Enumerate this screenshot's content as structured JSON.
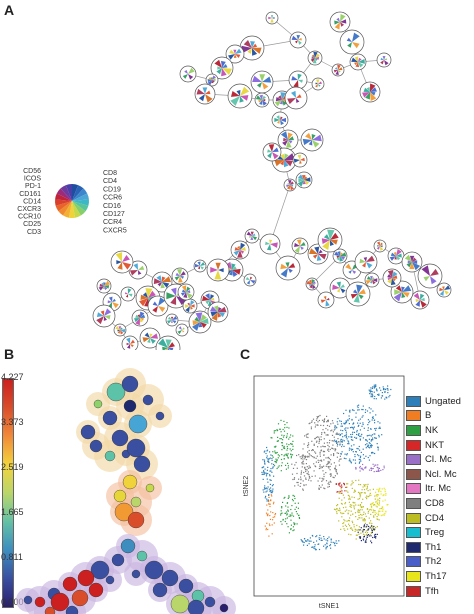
{
  "panels": {
    "a": {
      "letter": "A"
    },
    "b": {
      "letter": "B"
    },
    "c": {
      "letter": "C"
    }
  },
  "marker_legend": {
    "left": [
      "CD56",
      "ICOS",
      "PD-1",
      "CD161",
      "CD14",
      "CXCR3",
      "CCR10",
      "CD25",
      "CD3"
    ],
    "right": [
      "CD8",
      "CD4",
      "CD19",
      "CCR6",
      "CD16",
      "CD127",
      "CCR4",
      "CXCR5"
    ]
  },
  "colorbar": {
    "ticks": [
      "4.227",
      "3.373",
      "2.519",
      "1.665",
      "0.811",
      "0.000"
    ],
    "colors": [
      "#cc1f1f",
      "#d94d2b",
      "#f08a3a",
      "#f3d33c",
      "#b9d66a",
      "#65c1a5",
      "#3d8dbf",
      "#3a4fa0",
      "#2a1f6e"
    ]
  },
  "tsne": {
    "xlabel": "tSNE1",
    "ylabel": "tSNE2"
  },
  "legend": [
    {
      "label": "Ungated",
      "color": "#2c7fb8"
    },
    {
      "label": "B",
      "color": "#f07d22"
    },
    {
      "label": "NK",
      "color": "#2ea043"
    },
    {
      "label": "NKT",
      "color": "#d62728"
    },
    {
      "label": "Cl. Mc",
      "color": "#9a6fc7"
    },
    {
      "label": "Ncl. Mc",
      "color": "#8c564b"
    },
    {
      "label": "Itr. Mc",
      "color": "#e377c2"
    },
    {
      "label": "CD8",
      "color": "#7f7f7f"
    },
    {
      "label": "CD4",
      "color": "#bcbd22"
    },
    {
      "label": "Treg",
      "color": "#17becf"
    },
    {
      "label": "Th1",
      "color": "#1f2a6e"
    },
    {
      "label": "Th2",
      "color": "#4a5ec9"
    },
    {
      "label": "Th17",
      "color": "#e8e61a"
    },
    {
      "label": "Tfh",
      "color": "#c62828"
    }
  ]
}
